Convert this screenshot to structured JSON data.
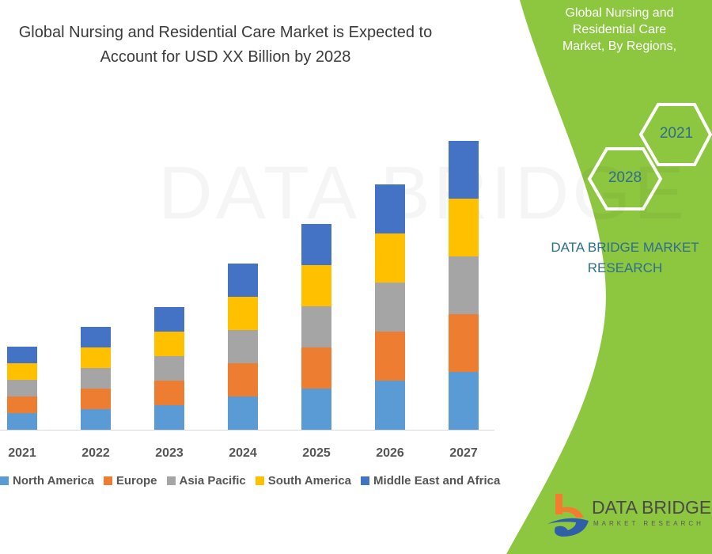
{
  "header": {
    "title_lines": [
      "Global Nursing and Residential Care Market is Expected to",
      "Account for USD XX Billion by 2028"
    ]
  },
  "side_panel": {
    "title_lines": [
      "Global Nursing and Residential Care",
      "Market, By Regions,"
    ],
    "hexagons": [
      "2028",
      "2021"
    ],
    "brand_lines": [
      "DATA BRIDGE MARKET",
      "RESEARCH"
    ],
    "background_color": "#8dc63f"
  },
  "logo": {
    "name": "DATA BRIDGE",
    "tagline": "MARKET RESEARCH"
  },
  "chart_data": {
    "type": "bar",
    "stacked": true,
    "title": "Global Nursing and Residential Care Market is Expected to Account for USD XX Billion by 2028",
    "categories": [
      "2021",
      "2022",
      "2023",
      "2024",
      "2025",
      "2026",
      "2027"
    ],
    "series": [
      {
        "name": "North America",
        "color": "#5b9bd5",
        "values": [
          21,
          26,
          31,
          42,
          52,
          62,
          73
        ]
      },
      {
        "name": "Europe",
        "color": "#ed7d31",
        "values": [
          21,
          26,
          31,
          42,
          52,
          62,
          73
        ]
      },
      {
        "name": "Asia Pacific",
        "color": "#a5a5a5",
        "values": [
          21,
          26,
          31,
          42,
          52,
          62,
          73
        ]
      },
      {
        "name": "South America",
        "color": "#ffc000",
        "values": [
          21,
          26,
          31,
          42,
          52,
          62,
          73
        ]
      },
      {
        "name": "Middle East and Africa",
        "color": "#4472c4",
        "values": [
          21,
          26,
          31,
          42,
          52,
          62,
          73
        ]
      }
    ],
    "xlabel": "",
    "ylabel": "",
    "y_axis_shown": false,
    "grid": false,
    "legend_position": "bottom"
  }
}
